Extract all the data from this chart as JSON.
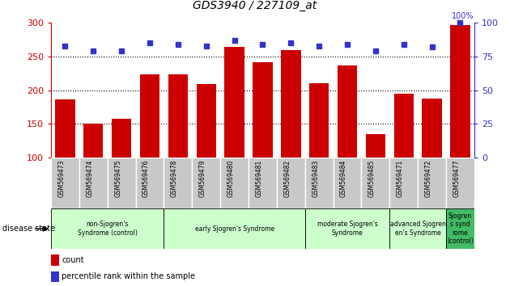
{
  "title": "GDS3940 / 227109_at",
  "samples": [
    "GSM569473",
    "GSM569474",
    "GSM569475",
    "GSM569476",
    "GSM569478",
    "GSM569479",
    "GSM569480",
    "GSM569481",
    "GSM569482",
    "GSM569483",
    "GSM569484",
    "GSM569485",
    "GSM569471",
    "GSM569472",
    "GSM569477"
  ],
  "counts": [
    186,
    150,
    157,
    224,
    223,
    209,
    264,
    241,
    259,
    210,
    237,
    135,
    195,
    187,
    297
  ],
  "percentile_ranks": [
    83,
    79,
    79,
    85,
    84,
    83,
    87,
    84,
    85,
    83,
    84,
    79,
    84,
    82,
    100
  ],
  "bar_color": "#cc0000",
  "dot_color": "#3333cc",
  "ylim_left": [
    100,
    300
  ],
  "ylim_right": [
    0,
    100
  ],
  "yticks_left": [
    100,
    150,
    200,
    250,
    300
  ],
  "yticks_right": [
    0,
    25,
    50,
    75,
    100
  ],
  "group_spans": [
    {
      "start": 0,
      "end": 3,
      "label": "non-Sjogren's\nSyndrome (control)",
      "color": "#ccffcc"
    },
    {
      "start": 4,
      "end": 8,
      "label": "early Sjogren's Syndrome",
      "color": "#ccffcc"
    },
    {
      "start": 9,
      "end": 11,
      "label": "moderate Sjogren's\nSyndrome",
      "color": "#ccffcc"
    },
    {
      "start": 12,
      "end": 13,
      "label": "advanced Sjogren\nen's Syndrome",
      "color": "#ccffcc"
    },
    {
      "start": 14,
      "end": 14,
      "label": "Sjogren\ns synd\nrome\n(control)",
      "color": "#44bb66"
    }
  ],
  "bg_color": "#ffffff",
  "tick_area_color": "#c8c8c8",
  "left_axis_color": "#cc0000",
  "right_axis_color": "#3333cc",
  "disease_state_label": "disease state",
  "legend_items": [
    {
      "color": "#cc0000",
      "label": "count"
    },
    {
      "color": "#3333cc",
      "label": "percentile rank within the sample"
    }
  ]
}
